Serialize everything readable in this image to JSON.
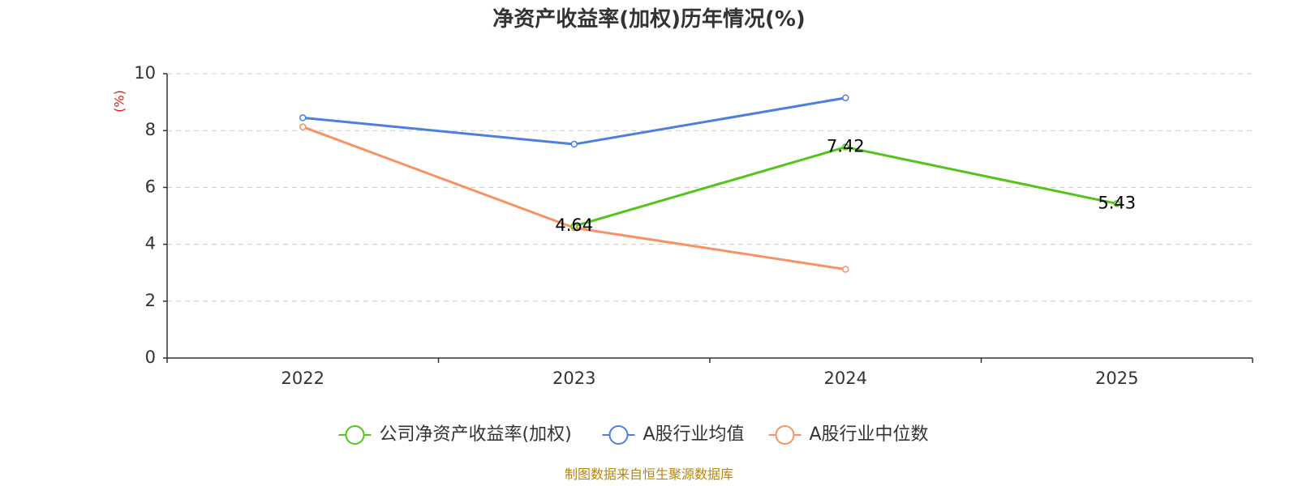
{
  "colors": {
    "company": "#52c41a",
    "avg": "#4e7fdf",
    "median": "#f89263",
    "unit": "#e81818",
    "source": "#b8860b",
    "grid": "#cccccc",
    "axis": "#333333"
  },
  "chart_data": {
    "type": "line",
    "title": "净资产收益率(加权)历年情况(%)",
    "ylabel": "(%)",
    "xlabel": "",
    "categories": [
      "2022",
      "2023",
      "2024",
      "2025"
    ],
    "ylim": [
      0,
      10
    ],
    "yticks": [
      0,
      2,
      4,
      6,
      8,
      10
    ],
    "grid": true,
    "legend_position": "bottom",
    "series": [
      {
        "name": "公司净资产收益率(加权)",
        "color_key": "company",
        "values": [
          null,
          4.64,
          7.42,
          5.43
        ],
        "labels": [
          null,
          "4.64",
          "7.42",
          "5.43"
        ]
      },
      {
        "name": "A股行业均值",
        "color_key": "avg",
        "values": [
          8.45,
          7.52,
          9.15,
          null
        ]
      },
      {
        "name": "A股行业中位数",
        "color_key": "median",
        "values": [
          8.13,
          4.58,
          3.12,
          null
        ]
      }
    ]
  },
  "source": "制图数据来自恒生聚源数据库"
}
